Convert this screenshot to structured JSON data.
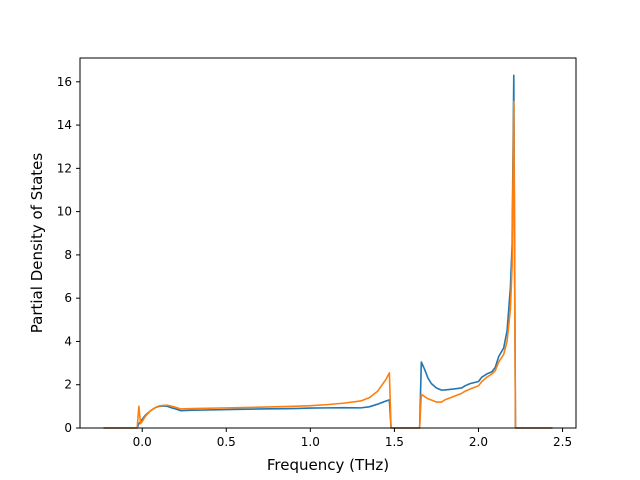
{
  "chart_data": {
    "type": "line",
    "title": "",
    "xlabel": "Frequency (THz)",
    "ylabel": "Partial Density of States",
    "xlim": [
      -0.37,
      2.58
    ],
    "ylim": [
      0,
      17.1
    ],
    "grid": false,
    "legend": "none",
    "xticks": [
      0.0,
      0.5,
      1.0,
      1.5,
      2.0,
      2.5
    ],
    "xtick_labels": [
      "0.0",
      "0.5",
      "1.0",
      "1.5",
      "2.0",
      "2.5"
    ],
    "yticks": [
      0,
      2,
      4,
      6,
      8,
      10,
      12,
      14,
      16
    ],
    "ytick_labels": [
      "0",
      "2",
      "4",
      "6",
      "8",
      "10",
      "12",
      "14",
      "16"
    ],
    "series": [
      {
        "color": "#1f77b4",
        "x": [
          -0.23,
          -0.03,
          -0.02,
          -0.01,
          0.0,
          0.02,
          0.05,
          0.08,
          0.1,
          0.13,
          0.15,
          0.18,
          0.2,
          0.23,
          0.3,
          0.5,
          0.7,
          0.9,
          1.0,
          1.1,
          1.2,
          1.3,
          1.35,
          1.4,
          1.45,
          1.47,
          1.48,
          1.5,
          1.55,
          1.6,
          1.64,
          1.65,
          1.66,
          1.68,
          1.7,
          1.72,
          1.75,
          1.78,
          1.8,
          1.85,
          1.9,
          1.92,
          1.95,
          2.0,
          2.02,
          2.05,
          2.08,
          2.1,
          2.12,
          2.15,
          2.17,
          2.19,
          2.2,
          2.21,
          2.215,
          2.22,
          2.25,
          2.3,
          2.44
        ],
        "y": [
          0.0,
          0.0,
          0.2,
          0.3,
          0.4,
          0.6,
          0.8,
          0.95,
          1.0,
          1.02,
          1.0,
          0.92,
          0.88,
          0.8,
          0.82,
          0.85,
          0.88,
          0.9,
          0.92,
          0.93,
          0.94,
          0.93,
          0.98,
          1.1,
          1.25,
          1.3,
          0.0,
          0.0,
          0.0,
          0.0,
          0.0,
          0.0,
          3.05,
          2.7,
          2.3,
          2.05,
          1.85,
          1.75,
          1.76,
          1.8,
          1.85,
          1.95,
          2.05,
          2.15,
          2.35,
          2.5,
          2.6,
          2.8,
          3.3,
          3.7,
          4.5,
          6.5,
          8.5,
          16.3,
          8.0,
          0.0,
          0.0,
          0.0,
          0.0
        ]
      },
      {
        "color": "#ff7f0e",
        "x": [
          -0.23,
          -0.03,
          -0.02,
          -0.01,
          0.0,
          0.02,
          0.05,
          0.08,
          0.1,
          0.13,
          0.15,
          0.18,
          0.2,
          0.23,
          0.3,
          0.5,
          0.7,
          0.9,
          1.0,
          1.1,
          1.2,
          1.3,
          1.35,
          1.4,
          1.45,
          1.47,
          1.48,
          1.5,
          1.55,
          1.6,
          1.64,
          1.65,
          1.66,
          1.7,
          1.75,
          1.78,
          1.8,
          1.85,
          1.9,
          1.92,
          1.95,
          2.0,
          2.02,
          2.05,
          2.08,
          2.1,
          2.12,
          2.15,
          2.17,
          2.19,
          2.2,
          2.21,
          2.215,
          2.22,
          2.25,
          2.3,
          2.44
        ],
        "y": [
          0.0,
          0.0,
          1.0,
          0.2,
          0.3,
          0.55,
          0.8,
          0.95,
          1.02,
          1.05,
          1.05,
          1.0,
          0.95,
          0.88,
          0.9,
          0.93,
          0.96,
          1.0,
          1.03,
          1.08,
          1.15,
          1.25,
          1.4,
          1.7,
          2.25,
          2.55,
          0.0,
          0.0,
          0.0,
          0.0,
          0.0,
          0.0,
          1.55,
          1.35,
          1.2,
          1.2,
          1.3,
          1.45,
          1.6,
          1.7,
          1.8,
          1.95,
          2.15,
          2.35,
          2.5,
          2.65,
          3.05,
          3.4,
          4.0,
          5.5,
          7.5,
          15.1,
          7.0,
          0.0,
          0.0,
          0.0,
          0.0
        ]
      }
    ]
  }
}
